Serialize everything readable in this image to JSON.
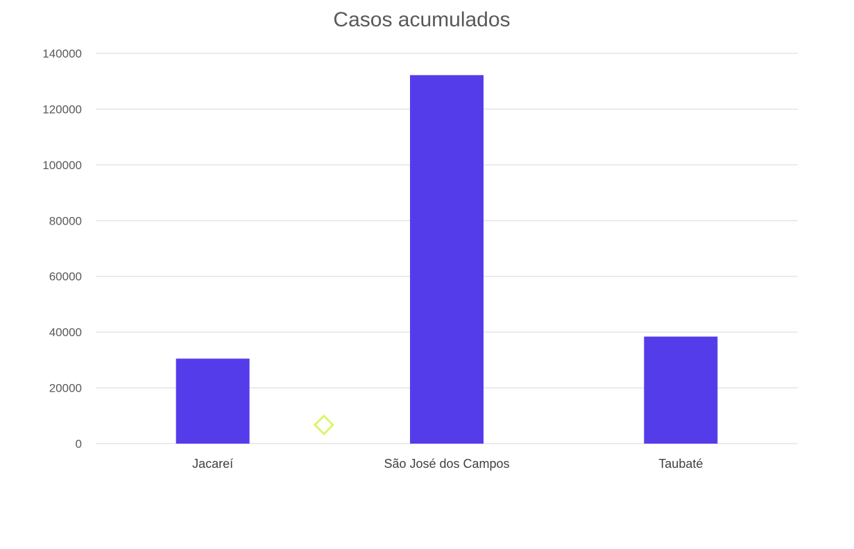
{
  "chart_data": {
    "type": "bar",
    "title": "Casos acumulados",
    "categories": [
      "Jacareí",
      "São José dos Campos",
      "Taubaté"
    ],
    "values": [
      30500,
      132200,
      38400
    ],
    "ylim": [
      0,
      140000
    ],
    "yticks": [
      0,
      20000,
      40000,
      60000,
      80000,
      100000,
      120000,
      140000
    ],
    "grid": true,
    "legend": "none",
    "colors": {
      "bar": "#553ceb",
      "grid": "#d9d9d9",
      "title": "#595959",
      "tick": "#595959",
      "marker": "#d8f56b"
    }
  }
}
